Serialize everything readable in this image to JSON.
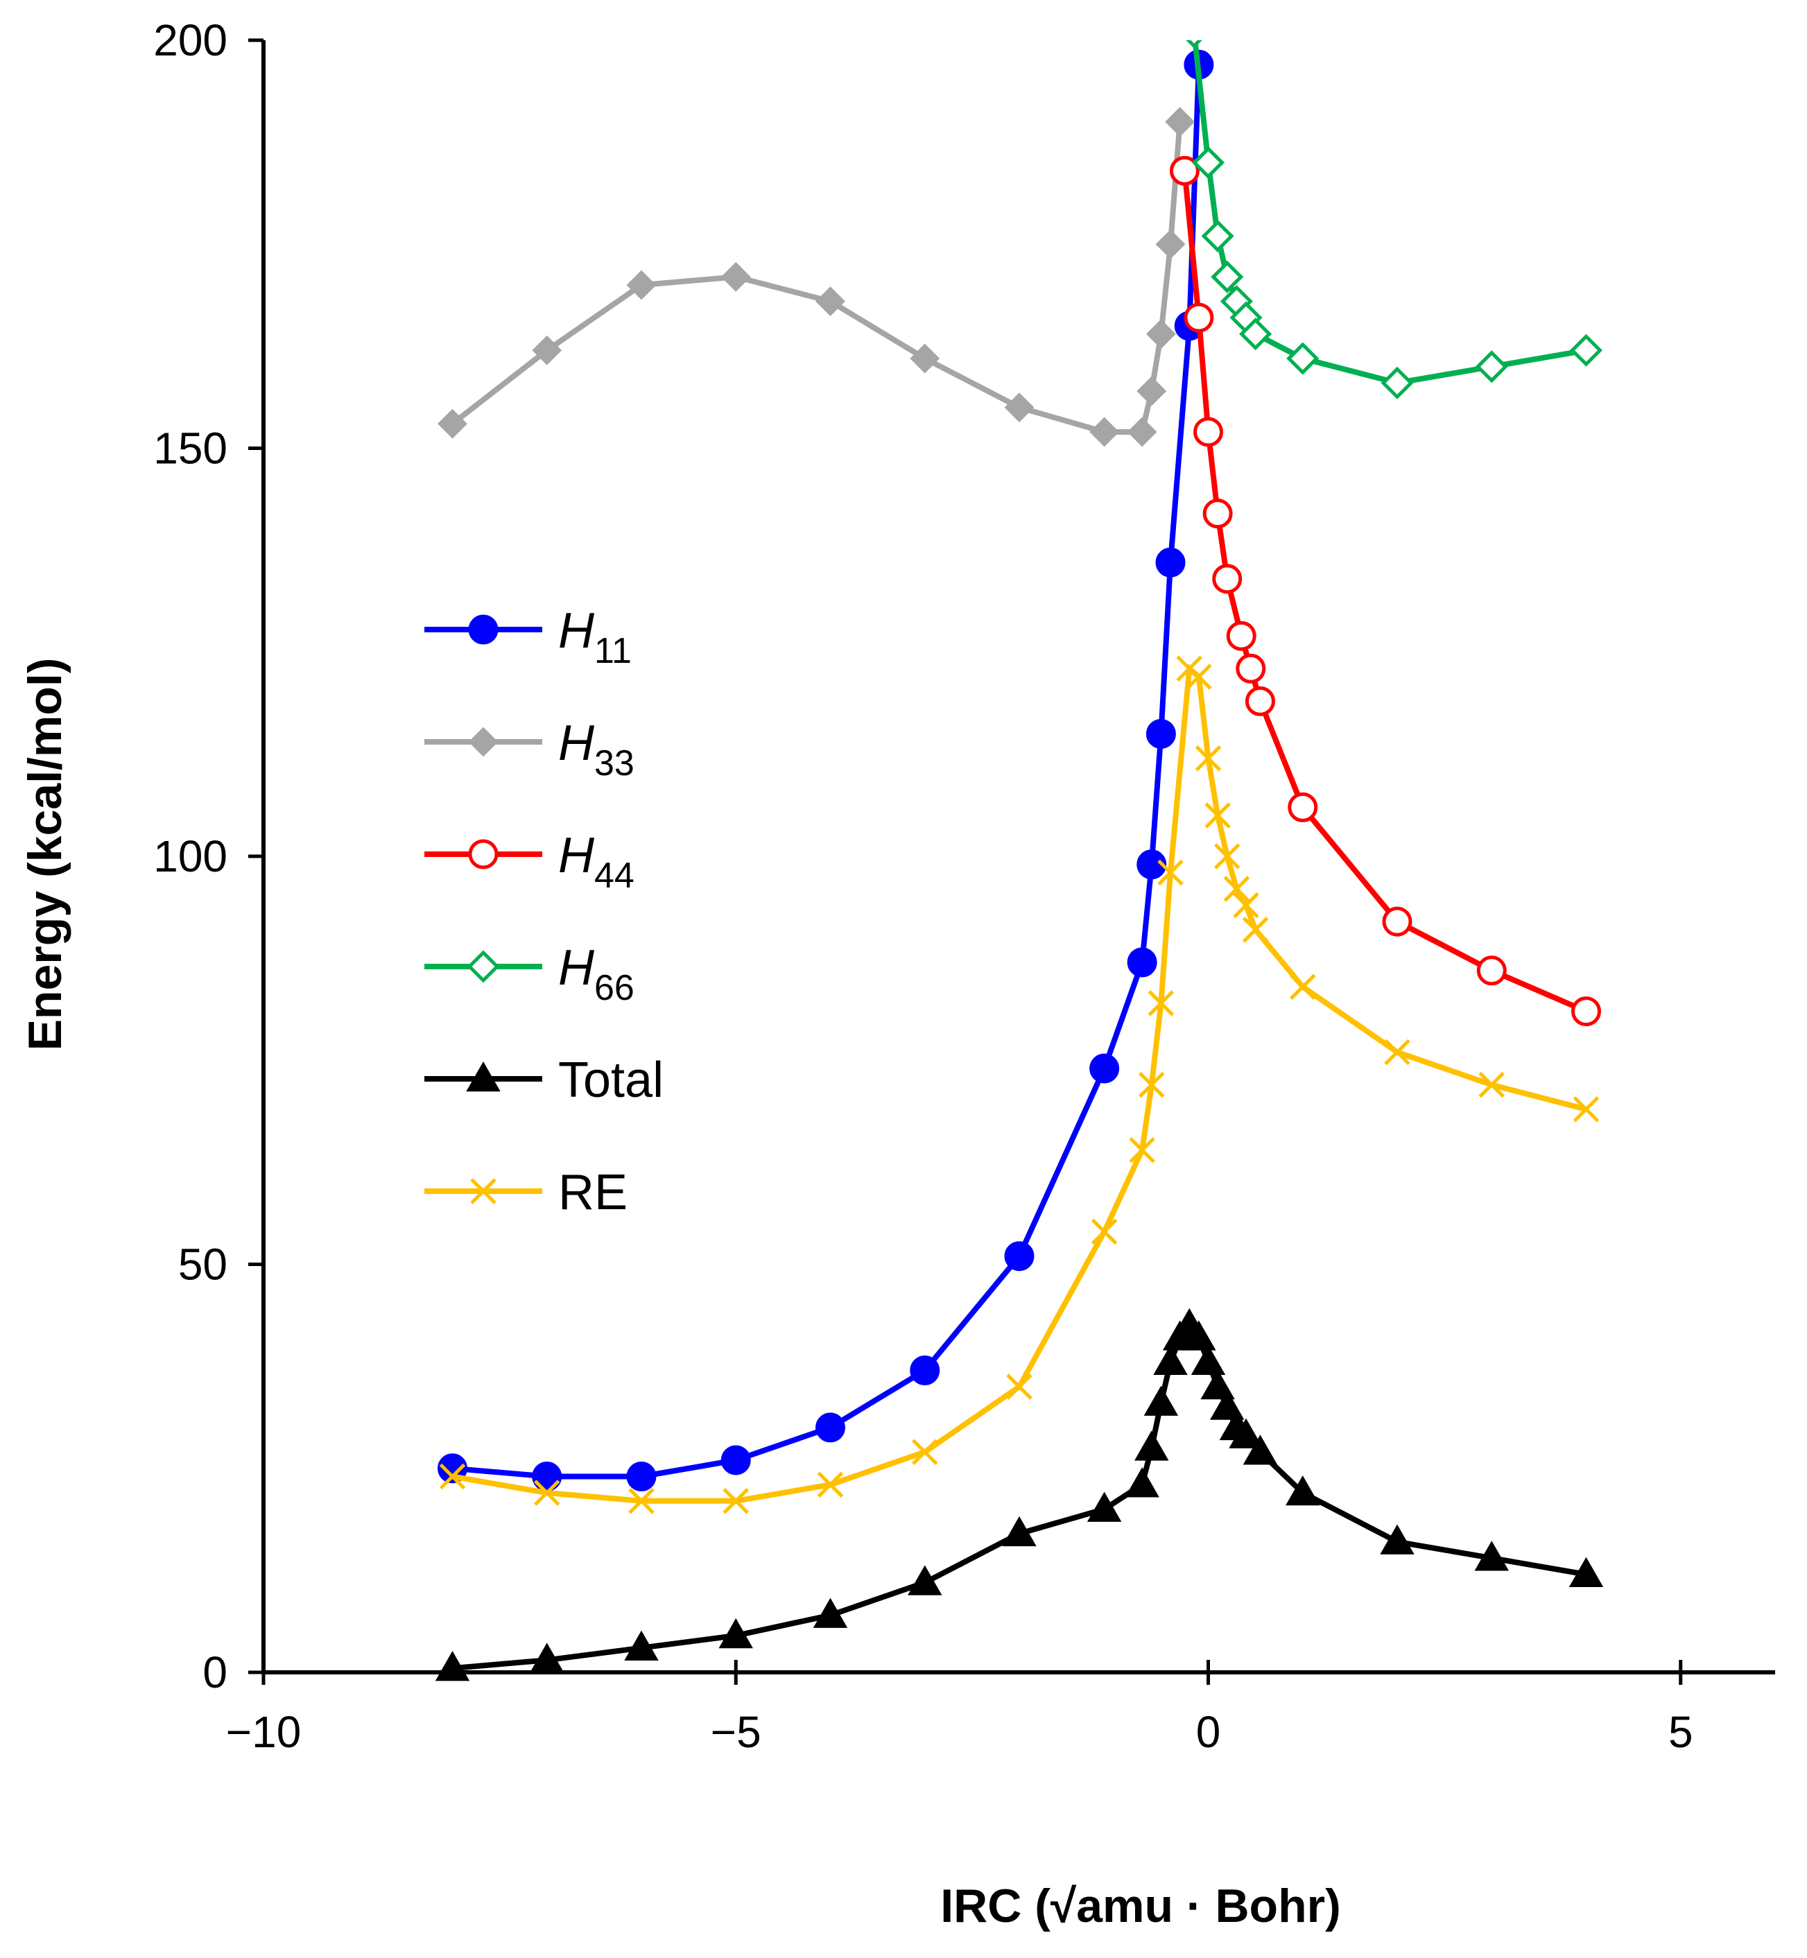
{
  "chart_data": {
    "type": "line",
    "xlabel": "IRC (√amu · Bohr)",
    "ylabel": "Energy (kcal/mol)",
    "xlim": [
      -10,
      6
    ],
    "ylim": [
      0,
      200
    ],
    "xticks": [
      -10,
      -5,
      0,
      5
    ],
    "yticks": [
      0,
      50,
      100,
      150,
      200
    ],
    "xtick_labels": [
      "−10",
      "−5",
      "0",
      "5"
    ],
    "ytick_labels": [
      "0",
      "50",
      "100",
      "150",
      "200"
    ],
    "grid": false,
    "legend_placement": "left-center",
    "series": [
      {
        "name": "H11",
        "legend_main": "H",
        "legend_sub": "11",
        "color": "#0000FF",
        "marker": "filled-circle",
        "x": [
          -8,
          -7,
          -6,
          -5,
          -4,
          -3,
          -2,
          -1.1,
          -0.7,
          -0.6,
          -0.5,
          -0.4,
          -0.2,
          -0.1
        ],
        "y": [
          25,
          24,
          24,
          26,
          30,
          37,
          51,
          74,
          87,
          99,
          115,
          136,
          165,
          197
        ]
      },
      {
        "name": "H33",
        "legend_main": "H",
        "legend_sub": "33",
        "color": "#A5A5A5",
        "marker": "filled-diamond",
        "x": [
          -8,
          -7,
          -6,
          -5,
          -4,
          -3,
          -2,
          -1.1,
          -0.7,
          -0.6,
          -0.5,
          -0.4,
          -0.3
        ],
        "y": [
          153,
          162,
          170,
          171,
          168,
          161,
          155,
          152,
          152,
          157,
          164,
          175,
          190
        ]
      },
      {
        "name": "H44",
        "legend_main": "H",
        "legend_sub": "44",
        "color": "#FF0000",
        "marker": "open-circle",
        "x": [
          -0.25,
          -0.1,
          0,
          0.1,
          0.2,
          0.35,
          0.45,
          0.55,
          1,
          2,
          3,
          4
        ],
        "y": [
          184,
          166,
          152,
          142,
          134,
          127,
          123,
          119,
          106,
          92,
          86,
          81
        ]
      },
      {
        "name": "H66",
        "legend_main": "H",
        "legend_sub": "66",
        "color": "#00B050",
        "marker": "open-diamond",
        "x": [
          -0.15,
          0,
          0.1,
          0.2,
          0.3,
          0.4,
          0.5,
          1,
          2,
          3,
          4
        ],
        "y": [
          201,
          185,
          176,
          171,
          168,
          166,
          164,
          161,
          158,
          160,
          162
        ]
      },
      {
        "name": "Total",
        "legend_main": "Total",
        "legend_sub": "",
        "color": "#000000",
        "marker": "filled-triangle",
        "x": [
          -8,
          -7,
          -6,
          -5,
          -4,
          -3,
          -2,
          -1.1,
          -0.7,
          -0.6,
          -0.5,
          -0.4,
          -0.3,
          -0.2,
          -0.1,
          0,
          0.1,
          0.2,
          0.3,
          0.4,
          0.55,
          1,
          2,
          3,
          4
        ],
        "y": [
          0.5,
          1.5,
          3,
          4.5,
          7,
          11,
          17,
          20,
          23,
          27.5,
          33,
          38,
          41,
          42.5,
          41,
          38,
          35,
          32.5,
          30,
          29,
          27,
          22,
          16,
          14,
          12
        ]
      },
      {
        "name": "RE",
        "legend_main": "RE",
        "legend_sub": "",
        "color": "#FFC000",
        "marker": "x",
        "x": [
          -8,
          -7,
          -6,
          -5,
          -4,
          -3,
          -2,
          -1.1,
          -0.7,
          -0.6,
          -0.5,
          -0.4,
          -0.2,
          -0.1,
          0,
          0.1,
          0.2,
          0.3,
          0.4,
          0.5,
          1,
          2,
          3,
          4
        ],
        "y": [
          24,
          22,
          21,
          21,
          23,
          27,
          35,
          54,
          64,
          72,
          82,
          98,
          123,
          122,
          112,
          105,
          100,
          96,
          94,
          91,
          84,
          76,
          72,
          69
        ]
      }
    ]
  }
}
